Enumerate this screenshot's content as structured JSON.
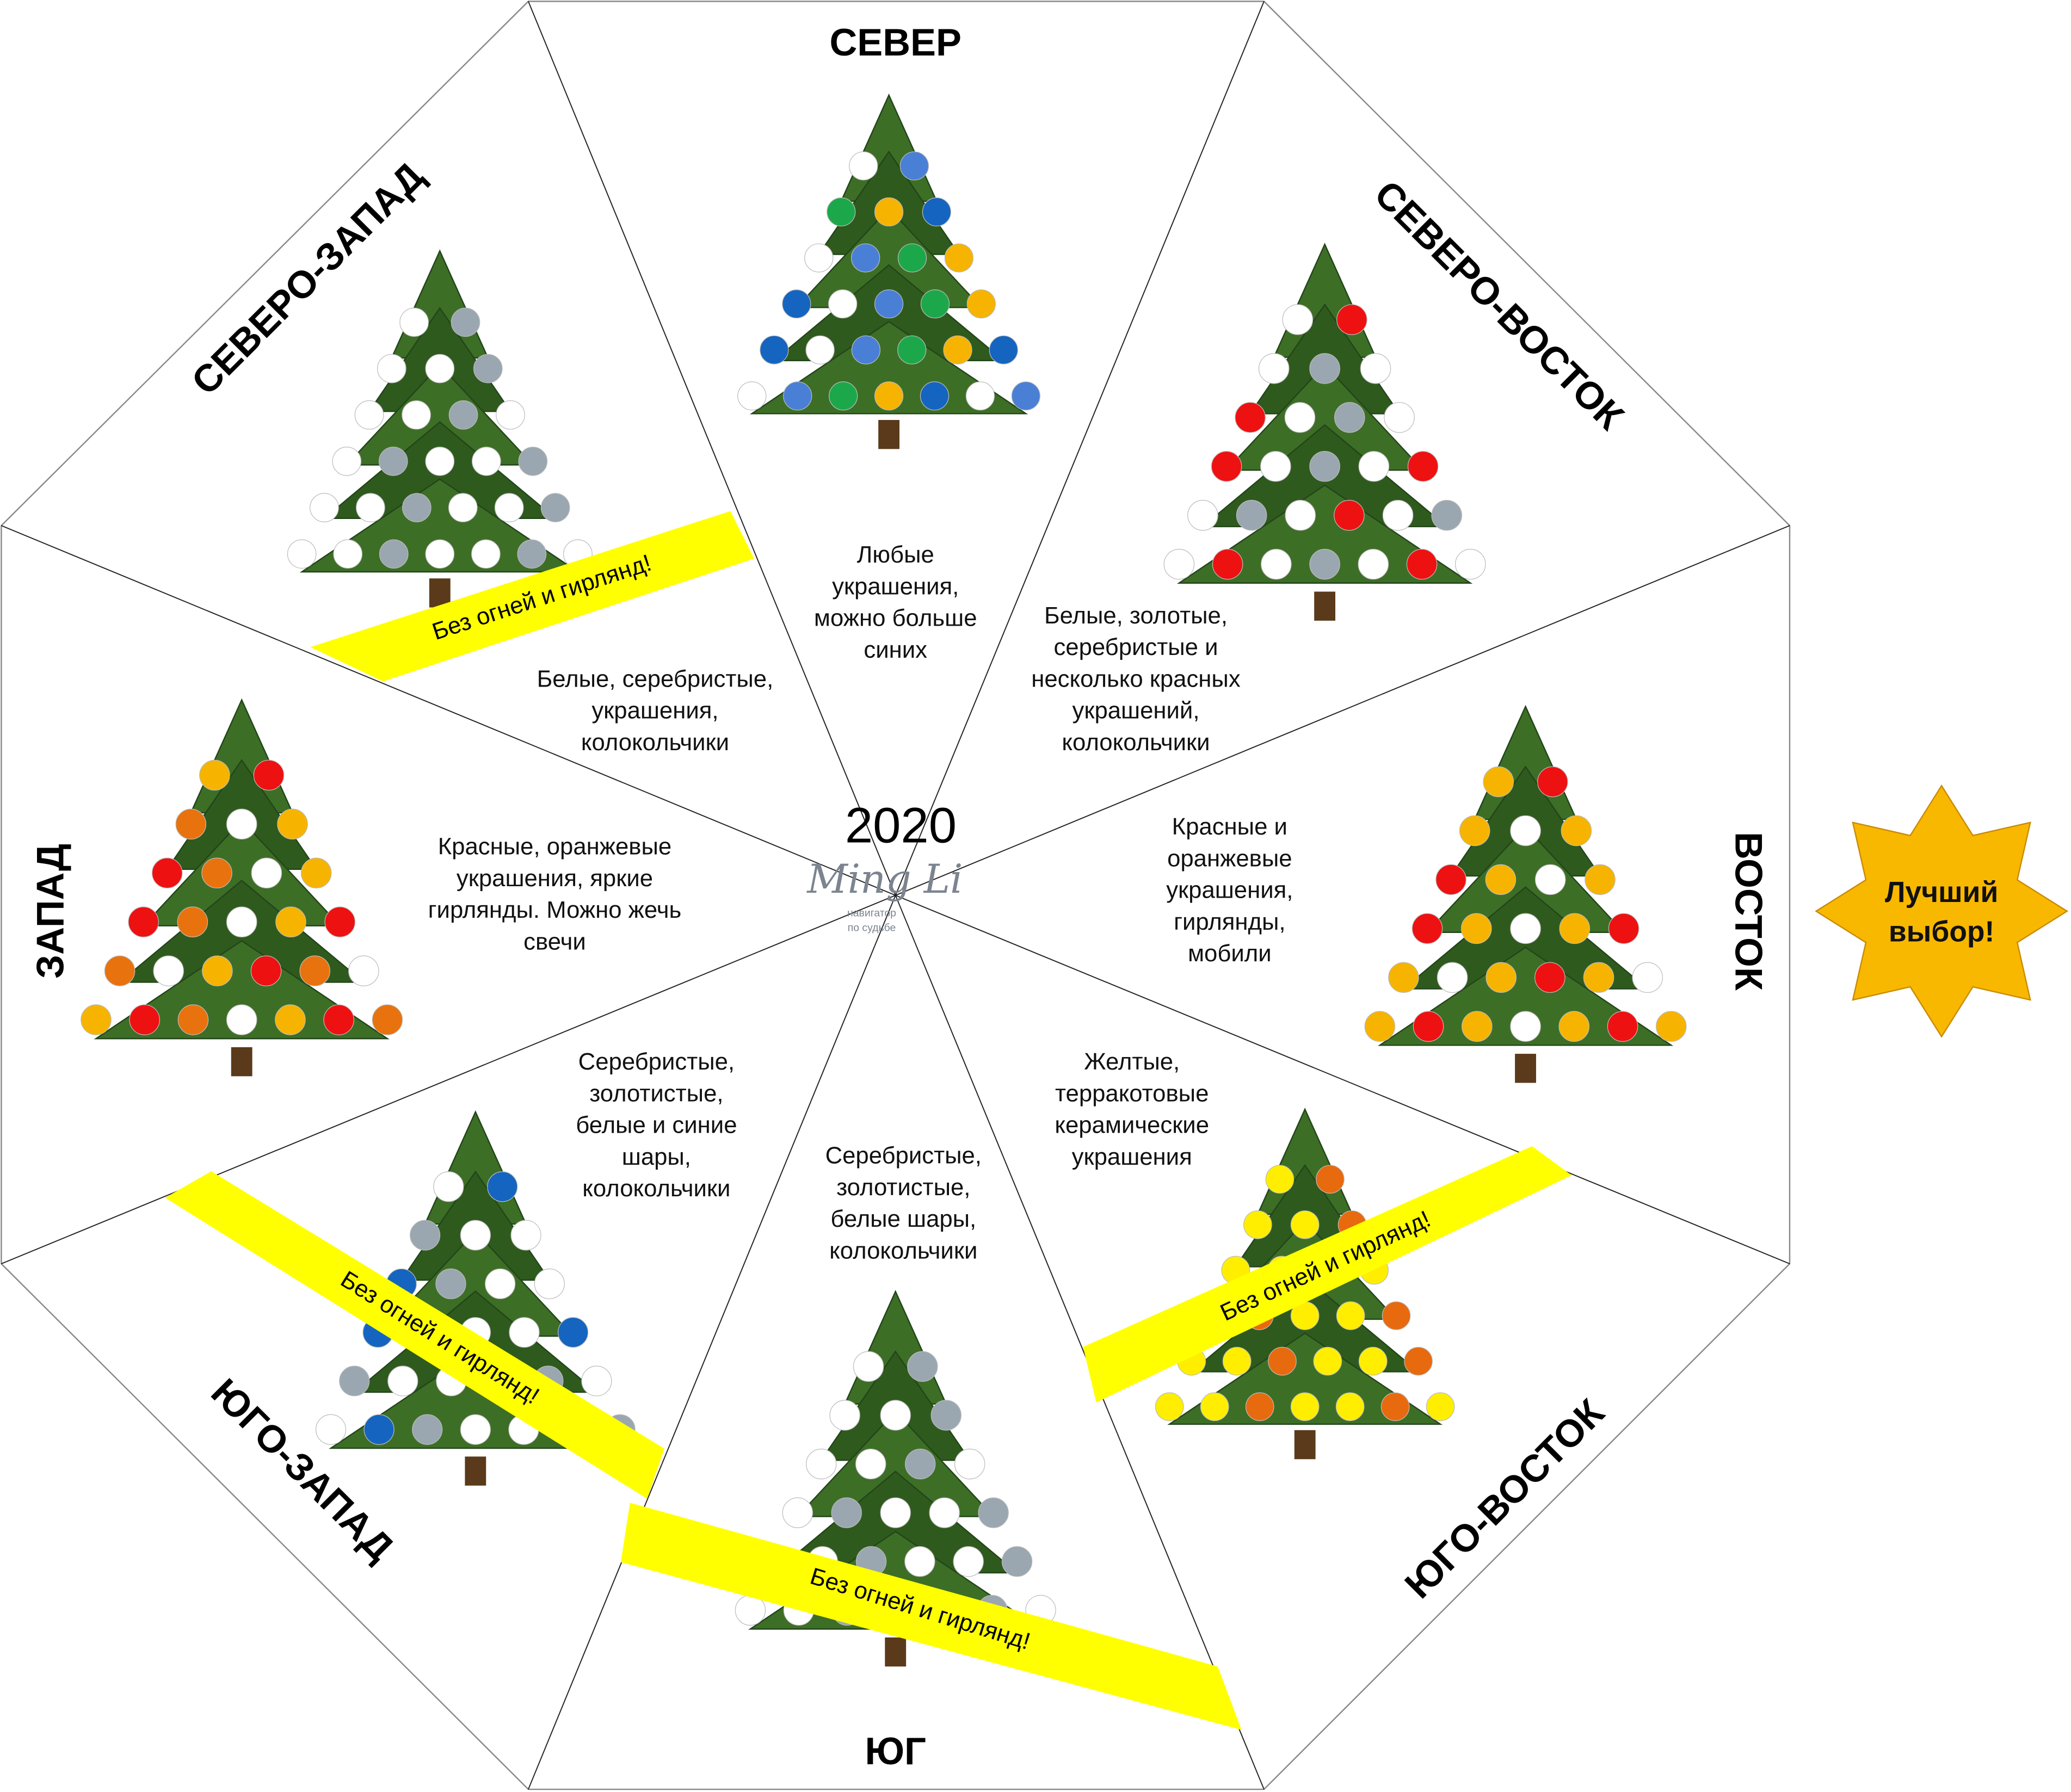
{
  "center": {
    "year": "2020",
    "logo_text": "Ming Li",
    "logo_sub1": "навигатор",
    "logo_sub2": "по судьбе"
  },
  "badge": {
    "line1": "Лучший",
    "line2": "выбор!",
    "color": "#f9b800"
  },
  "banner": {
    "text": "Без огней и гирлянд!",
    "color": "#ffff00"
  },
  "sectors": {
    "north": {
      "title": "СЕВЕР",
      "desc": [
        "Любые",
        "украшения,",
        "можно больше",
        "синих"
      ],
      "ornaments": [
        "#ffffff",
        "#4a7fd6",
        "#1ca84a",
        "#f6b400",
        "#1565c0"
      ]
    },
    "northeast": {
      "title": "СЕВЕРО-ВОСТОК",
      "desc": [
        "Белые, золотые,",
        "серебристые и",
        "несколько красных",
        "украшений,",
        "колокольчики"
      ],
      "ornaments": [
        "#ffffff",
        "#ee1111",
        "#ffffff",
        "#9aa7b0"
      ]
    },
    "east": {
      "title": "ВОСТОК",
      "desc": [
        "Красные и",
        "оранжевые",
        "украшения,",
        "гирлянды,",
        "мобили"
      ],
      "ornaments": [
        "#f6b400",
        "#ee1111",
        "#f6b400",
        "#ffffff"
      ]
    },
    "southeast": {
      "title": "ЮГО-ВОСТОК",
      "desc": [
        "Желтые,",
        "терракотовые",
        "керамические",
        "украшения"
      ],
      "ornaments": [
        "#ffee00",
        "#e86a0e",
        "#ffee00"
      ]
    },
    "south": {
      "title": "ЮГ",
      "desc": [
        "Серебристые,",
        "золотистые,",
        "белые шары,",
        "колокольчики"
      ],
      "ornaments": [
        "#ffffff",
        "#9aa7b0",
        "#ffffff"
      ]
    },
    "southwest": {
      "title": "ЮГО-ЗАПАД",
      "desc": [
        "Серебристые,",
        "золотистые,",
        "белые и синие",
        "шары,",
        "колокольчики"
      ],
      "ornaments": [
        "#ffffff",
        "#1565c0",
        "#9aa7b0",
        "#ffffff"
      ]
    },
    "west": {
      "title": "ЗАПАД",
      "desc": [
        "Красные, оранжевые",
        "украшения, яркие",
        "гирлянды. Можно жечь",
        "свечи"
      ],
      "ornaments": [
        "#f6b400",
        "#ee1111",
        "#e8730e",
        "#ffffff"
      ]
    },
    "northwest": {
      "title": "СЕВЕРО-ЗАПАД",
      "desc": [
        "Белые, серебристые,",
        "украшения,",
        "колокольчики"
      ],
      "ornaments": [
        "#ffffff",
        "#9aa7b0",
        "#ffffff"
      ]
    }
  }
}
